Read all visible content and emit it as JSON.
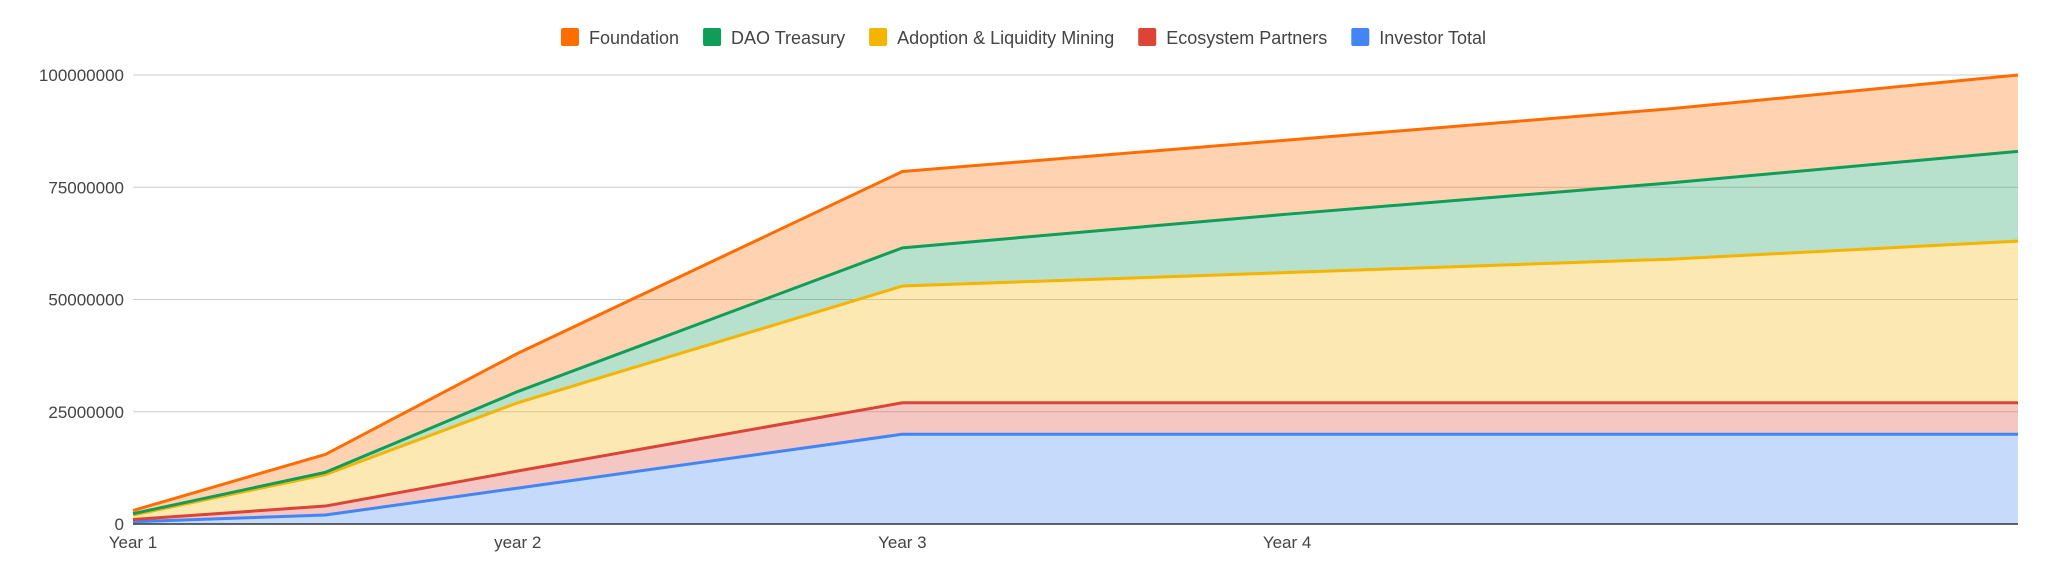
{
  "chart_data": {
    "type": "area",
    "stacked": true,
    "x_labels": [
      "Year 1",
      "year 2",
      "Year 3",
      "Year 4"
    ],
    "x": [
      0,
      0.5,
      1,
      2,
      3,
      4,
      4.9
    ],
    "ylim": [
      0,
      100000000
    ],
    "yticks": [
      0,
      25000000,
      50000000,
      75000000,
      100000000
    ],
    "ytick_labels": [
      "0",
      "25000000",
      "50000000",
      "75000000",
      "100000000"
    ],
    "grid": true,
    "legend_position": "top",
    "series": [
      {
        "name": "Investor Total",
        "color": "#4285f4",
        "values": [
          500000,
          2000000,
          8000000,
          20000000,
          20000000,
          20000000,
          20000000
        ]
      },
      {
        "name": "Ecosystem Partners",
        "color": "#db4437",
        "values": [
          500000,
          2000000,
          3800000,
          7000000,
          7000000,
          7000000,
          7000000
        ]
      },
      {
        "name": "Adoption & Liquidity Mining",
        "color": "#f4b400",
        "values": [
          1000000,
          7000000,
          15200000,
          26000000,
          29000000,
          32000000,
          36000000
        ]
      },
      {
        "name": "DAO Treasury",
        "color": "#0f9d58",
        "values": [
          300000,
          500000,
          2500000,
          8500000,
          13000000,
          17000000,
          20000000
        ]
      },
      {
        "name": "Foundation",
        "color": "#ff6d01",
        "values": [
          700000,
          4000000,
          8500000,
          17000000,
          16500000,
          16500000,
          17000000
        ]
      }
    ]
  }
}
